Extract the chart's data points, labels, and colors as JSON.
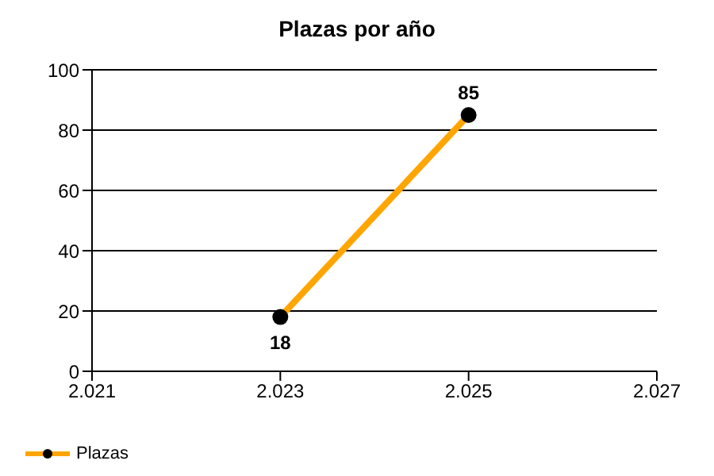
{
  "chart_data": {
    "type": "line",
    "title": "Plazas por año",
    "x": [
      2023,
      2025
    ],
    "series": [
      {
        "name": "Plazas",
        "color": "#ffa500",
        "values": [
          18,
          85
        ]
      }
    ],
    "xlim": [
      2021,
      2027
    ],
    "xticks": [
      {
        "value": 2021,
        "label": "2.021"
      },
      {
        "value": 2023,
        "label": "2.023"
      },
      {
        "value": 2025,
        "label": "2.025"
      },
      {
        "value": 2027,
        "label": "2.027"
      }
    ],
    "ylim": [
      0,
      100
    ],
    "yticks": [
      0,
      20,
      40,
      60,
      80,
      100
    ],
    "grid": "y",
    "legend": "bottom left",
    "marker": "circle",
    "line_style": "solid",
    "data_labels": true
  }
}
